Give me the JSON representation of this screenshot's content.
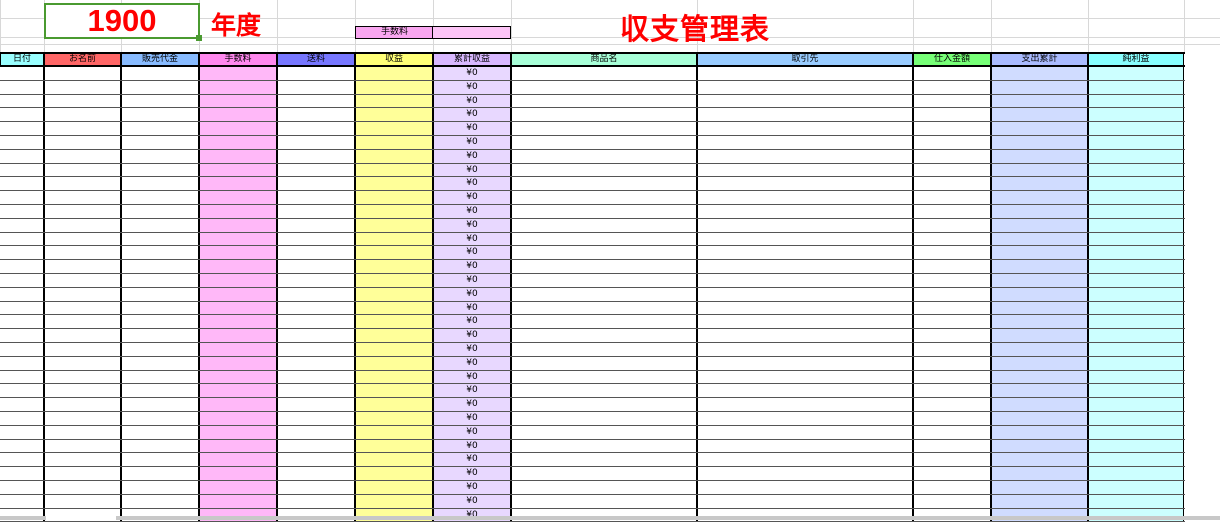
{
  "header": {
    "year": "1900",
    "year_suffix": "年度",
    "title": "収支管理表",
    "fee_label": "手数料",
    "fee_value": ""
  },
  "columns": [
    {
      "label": "日付",
      "header_color": "#99ffff",
      "fill": "#ffffff"
    },
    {
      "label": "お名前",
      "header_color": "#ff6666",
      "fill": "#ffffff"
    },
    {
      "label": "販売代金",
      "header_color": "#88bbff",
      "fill": "#ffffff"
    },
    {
      "label": "手数料",
      "header_color": "#ff88ee",
      "fill": "#ffb8f8"
    },
    {
      "label": "送料",
      "header_color": "#7777ff",
      "fill": "#ffffff"
    },
    {
      "label": "収益",
      "header_color": "#ffff77",
      "fill": "#ffff99"
    },
    {
      "label": "累計収益",
      "header_color": "#d8b8ff",
      "fill": "#e8d8ff"
    },
    {
      "label": "商品名",
      "header_color": "#a8ffd8",
      "fill": "#ffffff"
    },
    {
      "label": "取引先",
      "header_color": "#99ccff",
      "fill": "#ffffff"
    },
    {
      "label": "仕入金額",
      "header_color": "#77ff77",
      "fill": "#ffffff"
    },
    {
      "label": "支出累計",
      "header_color": "#aabbff",
      "fill": "#d0dcff"
    },
    {
      "label": "純利益",
      "header_color": "#88ffff",
      "fill": "#ccffff"
    }
  ],
  "cumulative_values": [
    "¥0",
    "¥0",
    "¥0",
    "¥0",
    "¥0",
    "¥0",
    "¥0",
    "¥0",
    "¥0",
    "¥0",
    "¥0",
    "¥0",
    "¥0",
    "¥0",
    "¥0",
    "¥0",
    "¥0",
    "¥0",
    "¥0",
    "¥0",
    "¥0",
    "¥0",
    "¥0",
    "¥0",
    "¥0",
    "¥0",
    "¥0",
    "¥0",
    "¥0",
    "¥0",
    "¥0",
    "¥0",
    "¥0"
  ]
}
